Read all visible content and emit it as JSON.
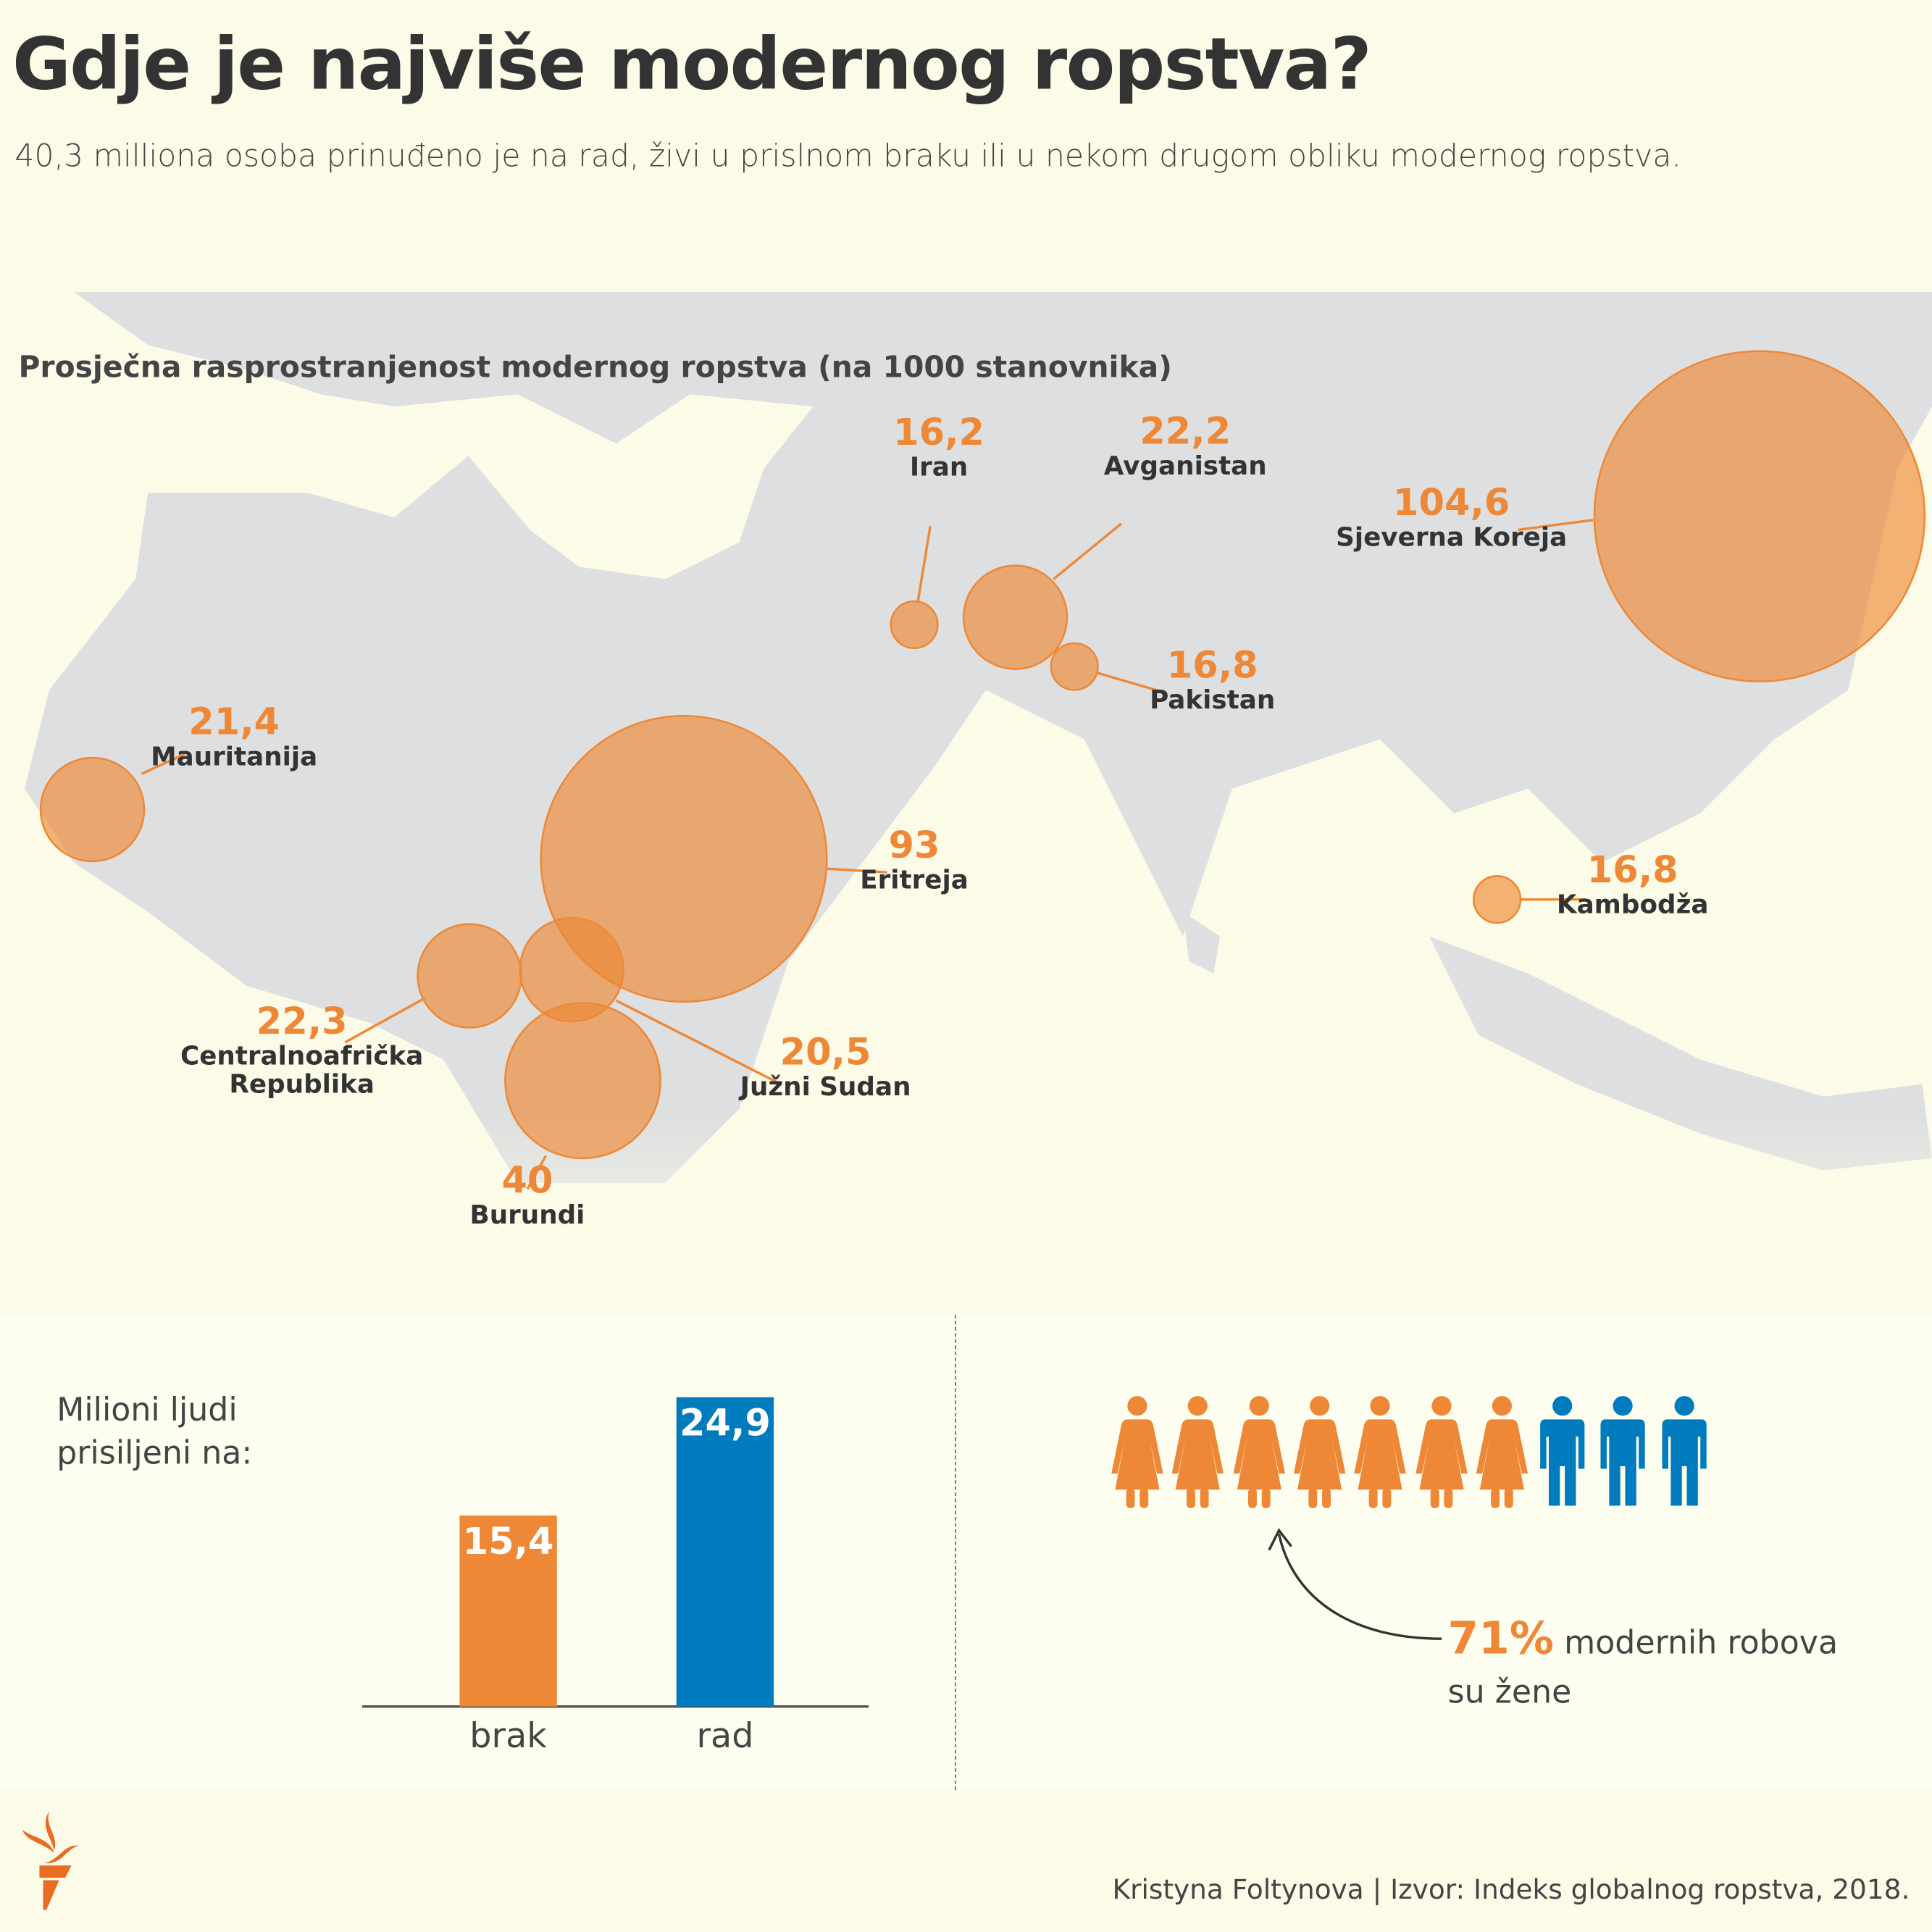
{
  "title": "Gdje je najviše modernog ropstva?",
  "subtitle": "40,3 milliona osoba prinuđeno je na rad, živi u prislnom braku ili u nekom drugom obliku modernog ropstva.",
  "colors": {
    "orange": "#ee8836",
    "blue": "#007bbd",
    "land": "#dddfe0",
    "bg": "#fcfbe8"
  },
  "chart_data": [
    {
      "type": "scatter",
      "title": "Prosječna rasprostranjenost modernog ropstva (na 1000 stanovnika)",
      "points": [
        {
          "country": "Sjeverna Koreja",
          "value": "104,6"
        },
        {
          "country": "Eritreja",
          "value": "93"
        },
        {
          "country": "Burundi",
          "value": "40"
        },
        {
          "country": "Centralnoafrička Republika",
          "value": "22,3"
        },
        {
          "country": "Avganistan",
          "value": "22,2"
        },
        {
          "country": "Mauritanija",
          "value": "21,4"
        },
        {
          "country": "Južni Sudan",
          "value": "20,5"
        },
        {
          "country": "Pakistan",
          "value": "16,8"
        },
        {
          "country": "Kambodža",
          "value": "16,8"
        },
        {
          "country": "Iran",
          "value": "16,2"
        }
      ]
    },
    {
      "type": "bar",
      "title": "Milioni ljudi prisiljeni na:",
      "categories": [
        "brak",
        "rad"
      ],
      "values": [
        15.4,
        24.9
      ],
      "labels": [
        "15,4",
        "24,9"
      ],
      "ylim": [
        0,
        24.9
      ]
    }
  ],
  "women": {
    "percent": "71%",
    "text": "modernih robova",
    "text2": "su žene",
    "women_count": 7,
    "men_count": 3
  },
  "credit": "Kristyna Foltynova | Izvor: Indeks globalnog ropstva, 2018."
}
